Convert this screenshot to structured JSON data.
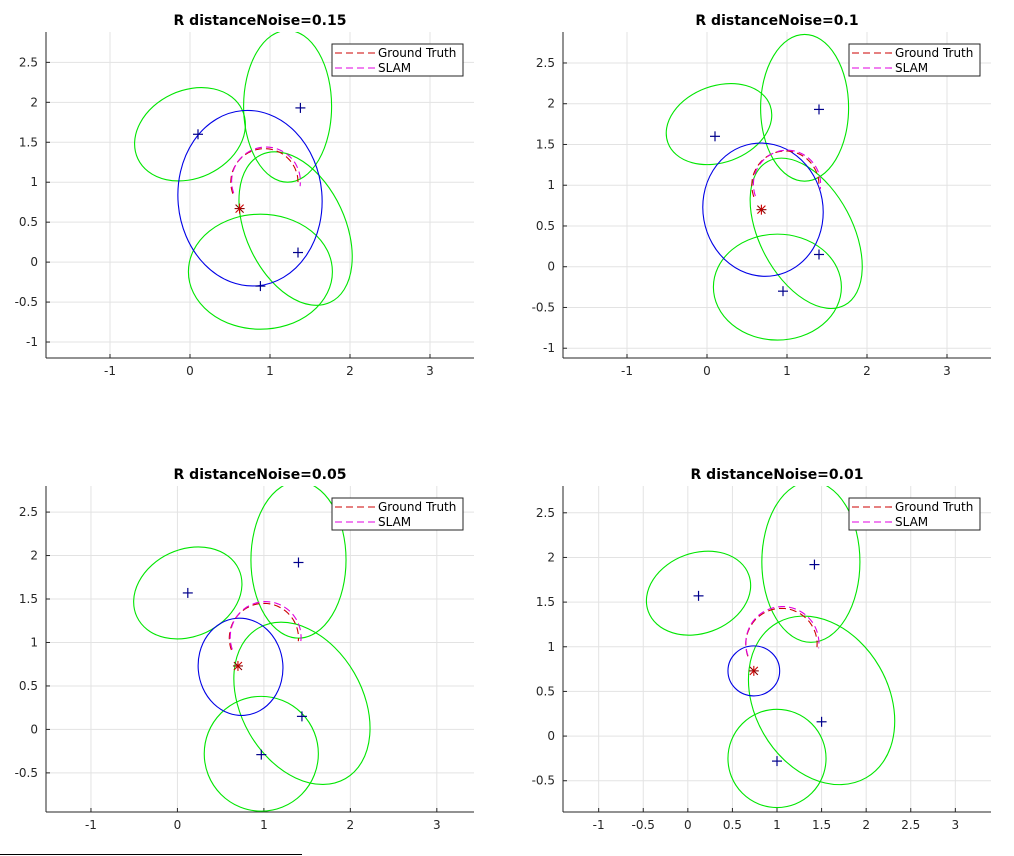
{
  "chart_data": [
    {
      "type": "scatter",
      "title": "R distanceNoise=0.15",
      "xlabel": "",
      "ylabel": "",
      "xlim": [
        -1.8,
        3.55
      ],
      "ylim": [
        -1.2,
        2.88
      ],
      "xticks": [
        -1,
        0,
        1,
        2,
        3
      ],
      "yticks": [
        -1,
        -0.5,
        0,
        0.5,
        1,
        1.5,
        2,
        2.5
      ],
      "grid": true,
      "legend_position": "top-right",
      "legend": [
        {
          "label": "Ground Truth",
          "color": "#cc0000"
        },
        {
          "label": "SLAM",
          "color": "#e000e0"
        }
      ],
      "landmarks": [
        {
          "x": 0.1,
          "y": 1.6
        },
        {
          "x": 1.38,
          "y": 1.93
        },
        {
          "x": 1.35,
          "y": 0.12
        },
        {
          "x": 0.88,
          "y": -0.3
        }
      ],
      "landmark_ellipses": [
        {
          "cx": 0.0,
          "cy": 1.6,
          "rx": 0.72,
          "ry": 0.55,
          "angle": -25
        },
        {
          "cx": 1.22,
          "cy": 1.95,
          "rx": 0.55,
          "ry": 0.95,
          "angle": 0
        },
        {
          "cx": 1.32,
          "cy": 0.42,
          "rx": 0.62,
          "ry": 1.02,
          "angle": -25
        },
        {
          "cx": 0.88,
          "cy": -0.12,
          "rx": 0.9,
          "ry": 0.72,
          "angle": 0
        }
      ],
      "robot_ellipse": {
        "cx": 0.75,
        "cy": 0.8,
        "rx": 0.9,
        "ry": 1.1,
        "angle": -5
      },
      "ground_truth_path": {
        "cx": 0.93,
        "cy": 1.0,
        "r": 0.42,
        "start_deg": 200,
        "end_deg": -5
      },
      "slam_path": {
        "cx": 0.95,
        "cy": 1.01,
        "r": 0.43,
        "start_deg": 200,
        "end_deg": -8
      },
      "robot_position": {
        "x": 0.62,
        "y": 0.67
      }
    },
    {
      "type": "scatter",
      "title": "R distanceNoise=0.1",
      "xlabel": "",
      "ylabel": "",
      "xlim": [
        -1.8,
        3.55
      ],
      "ylim": [
        -1.12,
        2.88
      ],
      "xticks": [
        -1,
        0,
        1,
        2,
        3
      ],
      "yticks": [
        -1,
        -0.5,
        0,
        0.5,
        1,
        1.5,
        2,
        2.5
      ],
      "grid": true,
      "legend_position": "top-right",
      "legend": [
        {
          "label": "Ground Truth",
          "color": "#cc0000"
        },
        {
          "label": "SLAM",
          "color": "#e000e0"
        }
      ],
      "landmarks": [
        {
          "x": 0.1,
          "y": 1.6
        },
        {
          "x": 1.4,
          "y": 1.93
        },
        {
          "x": 1.4,
          "y": 0.15
        },
        {
          "x": 0.95,
          "y": -0.3
        }
      ],
      "landmark_ellipses": [
        {
          "cx": 0.15,
          "cy": 1.75,
          "rx": 0.68,
          "ry": 0.47,
          "angle": -20
        },
        {
          "cx": 1.22,
          "cy": 1.95,
          "rx": 0.55,
          "ry": 0.9,
          "angle": 0
        },
        {
          "cx": 1.24,
          "cy": 0.41,
          "rx": 0.58,
          "ry": 1.0,
          "angle": -28
        },
        {
          "cx": 0.88,
          "cy": -0.25,
          "rx": 0.8,
          "ry": 0.65,
          "angle": 0
        }
      ],
      "robot_ellipse": {
        "cx": 0.7,
        "cy": 0.7,
        "rx": 0.75,
        "ry": 0.82,
        "angle": -10
      },
      "ground_truth_path": {
        "cx": 0.98,
        "cy": 1.0,
        "r": 0.42,
        "start_deg": 200,
        "end_deg": -5
      },
      "slam_path": {
        "cx": 1.0,
        "cy": 1.01,
        "r": 0.42,
        "start_deg": 200,
        "end_deg": -8
      },
      "robot_position": {
        "x": 0.68,
        "y": 0.7
      }
    },
    {
      "type": "scatter",
      "title": "R distanceNoise=0.05",
      "xlabel": "",
      "ylabel": "",
      "xlim": [
        -1.52,
        3.43
      ],
      "ylim": [
        -0.95,
        2.8
      ],
      "xticks": [
        -1,
        0,
        1,
        2,
        3
      ],
      "yticks": [
        -0.5,
        0,
        0.5,
        1,
        1.5,
        2,
        2.5
      ],
      "grid": true,
      "legend_position": "top-right",
      "legend": [
        {
          "label": "Ground Truth",
          "color": "#cc0000"
        },
        {
          "label": "SLAM",
          "color": "#e000e0"
        }
      ],
      "landmarks": [
        {
          "x": 0.12,
          "y": 1.57
        },
        {
          "x": 1.4,
          "y": 1.92
        },
        {
          "x": 1.44,
          "y": 0.15
        },
        {
          "x": 0.97,
          "y": -0.29
        }
      ],
      "landmark_ellipses": [
        {
          "cx": 0.12,
          "cy": 1.57,
          "rx": 0.65,
          "ry": 0.5,
          "angle": -25
        },
        {
          "cx": 1.4,
          "cy": 1.95,
          "rx": 0.55,
          "ry": 0.9,
          "angle": 0
        },
        {
          "cx": 1.44,
          "cy": 0.3,
          "rx": 0.7,
          "ry": 1.0,
          "angle": -30
        },
        {
          "cx": 0.97,
          "cy": -0.28,
          "rx": 0.66,
          "ry": 0.66,
          "angle": 0
        }
      ],
      "robot_ellipse": {
        "cx": 0.73,
        "cy": 0.72,
        "rx": 0.49,
        "ry": 0.56,
        "angle": -5
      },
      "ground_truth_path": {
        "cx": 1.0,
        "cy": 1.05,
        "r": 0.4,
        "start_deg": 200,
        "end_deg": -5
      },
      "slam_path": {
        "cx": 1.02,
        "cy": 1.06,
        "r": 0.41,
        "start_deg": 200,
        "end_deg": -8
      },
      "robot_position": {
        "x": 0.7,
        "y": 0.73
      }
    },
    {
      "type": "scatter",
      "title": "R distanceNoise=0.01",
      "xlabel": "",
      "ylabel": "",
      "xlim": [
        -1.4,
        3.4
      ],
      "ylim": [
        -0.85,
        2.8
      ],
      "xticks": [
        -1,
        -0.5,
        0,
        0.5,
        1,
        1.5,
        2,
        2.5,
        3
      ],
      "yticks": [
        -0.5,
        0,
        0.5,
        1,
        1.5,
        2,
        2.5
      ],
      "grid": true,
      "legend_position": "top-right",
      "legend": [
        {
          "label": "Ground Truth",
          "color": "#cc0000"
        },
        {
          "label": "SLAM",
          "color": "#e000e0"
        }
      ],
      "landmarks": [
        {
          "x": 0.12,
          "y": 1.57
        },
        {
          "x": 1.42,
          "y": 1.92
        },
        {
          "x": 1.5,
          "y": 0.16
        },
        {
          "x": 1.0,
          "y": -0.28
        }
      ],
      "landmark_ellipses": [
        {
          "cx": 0.12,
          "cy": 1.6,
          "rx": 0.6,
          "ry": 0.45,
          "angle": -20
        },
        {
          "cx": 1.38,
          "cy": 1.95,
          "rx": 0.55,
          "ry": 0.9,
          "angle": 0
        },
        {
          "cx": 1.5,
          "cy": 0.4,
          "rx": 0.75,
          "ry": 1.0,
          "angle": -30
        },
        {
          "cx": 1.0,
          "cy": -0.25,
          "rx": 0.55,
          "ry": 0.55,
          "angle": 0
        }
      ],
      "robot_ellipse": {
        "cx": 0.74,
        "cy": 0.73,
        "rx": 0.29,
        "ry": 0.28,
        "angle": 0
      },
      "ground_truth_path": {
        "cx": 1.05,
        "cy": 1.03,
        "r": 0.4,
        "start_deg": 200,
        "end_deg": -5
      },
      "slam_path": {
        "cx": 1.06,
        "cy": 1.04,
        "r": 0.41,
        "start_deg": 200,
        "end_deg": -8
      },
      "robot_position": {
        "x": 0.74,
        "y": 0.73
      }
    }
  ]
}
